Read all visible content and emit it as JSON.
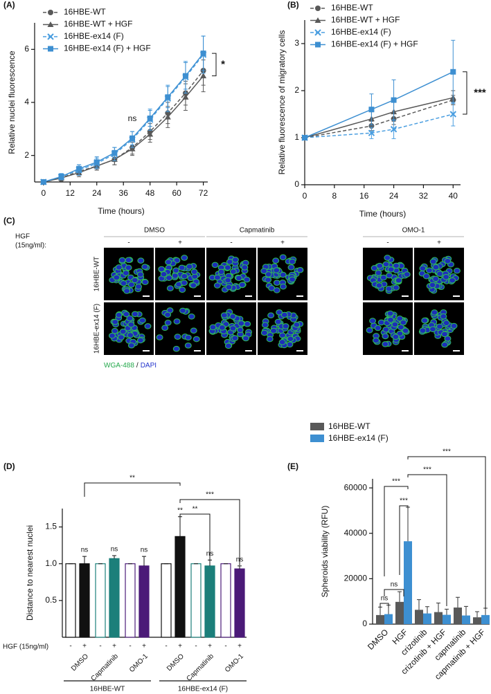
{
  "chart_data": [
    {
      "type": "line",
      "panel": "(A)",
      "x_label": "Time (hours)",
      "y_label": "Relative nuclei fluorescence",
      "x": [
        0,
        8,
        16,
        24,
        32,
        40,
        48,
        56,
        64,
        72
      ],
      "xlim": [
        -4,
        74
      ],
      "xticks": [
        0,
        12,
        24,
        36,
        48,
        60,
        72
      ],
      "ylim": [
        1,
        7
      ],
      "yticks": [
        2,
        4,
        6
      ],
      "series": [
        {
          "name": "16HBE-WT",
          "color": "#595959",
          "dash": true,
          "marker": "circle",
          "values": [
            1,
            1.15,
            1.4,
            1.6,
            1.85,
            2.3,
            2.9,
            3.6,
            4.35,
            5.2
          ],
          "errors": [
            0,
            0.12,
            0.15,
            0.15,
            0.2,
            0.25,
            0.3,
            0.4,
            0.45,
            0.55
          ]
        },
        {
          "name": "16HBE-WT + HGF",
          "color": "#595959",
          "dash": false,
          "marker": "triangle",
          "values": [
            1,
            1.15,
            1.35,
            1.6,
            1.85,
            2.25,
            2.8,
            3.45,
            4.2,
            5.0
          ],
          "errors": [
            0,
            0.1,
            0.15,
            0.15,
            0.2,
            0.25,
            0.3,
            0.4,
            0.5,
            0.6
          ]
        },
        {
          "name": "16HBE-ex14 (F)",
          "color": "#4a9ee0",
          "dash": true,
          "marker": "cross",
          "values": [
            1,
            1.2,
            1.45,
            1.7,
            2.05,
            2.6,
            3.35,
            4.15,
            4.95,
            5.8
          ],
          "errors": [
            0,
            0.12,
            0.2,
            0.2,
            0.25,
            0.3,
            0.4,
            0.5,
            0.6,
            0.7
          ]
        },
        {
          "name": "16HBE-ex14 (F) + HGF",
          "color": "#3d8fd1",
          "dash": false,
          "marker": "square",
          "values": [
            1,
            1.2,
            1.5,
            1.75,
            2.1,
            2.65,
            3.4,
            4.2,
            5.0,
            5.85
          ],
          "errors": [
            0,
            0.1,
            0.15,
            0.2,
            0.2,
            0.25,
            0.3,
            0.4,
            0.5,
            0.65
          ]
        }
      ],
      "annotations": [
        "ns",
        "*"
      ]
    },
    {
      "type": "line",
      "panel": "(B)",
      "x_label": "Time (hours)",
      "y_label": "Relative fluorescence of migratory cells",
      "x": [
        0,
        18,
        24,
        40
      ],
      "xlim": [
        0,
        42
      ],
      "xticks": [
        0,
        8,
        16,
        24,
        32,
        40
      ],
      "ylim": [
        0,
        3.5
      ],
      "yticks": [
        0,
        1,
        2,
        3
      ],
      "series": [
        {
          "name": "16HBE-WT",
          "color": "#595959",
          "dash": true,
          "marker": "circle",
          "values": [
            1,
            1.25,
            1.4,
            1.8
          ],
          "errors": [
            0,
            0.1,
            0.12,
            0.1
          ]
        },
        {
          "name": "16HBE-WT + HGF",
          "color": "#595959",
          "dash": false,
          "marker": "triangle",
          "values": [
            1,
            1.4,
            1.55,
            1.85
          ],
          "errors": [
            0,
            0.15,
            0.2,
            0.15
          ]
        },
        {
          "name": "16HBE-ex14 (F)",
          "color": "#4a9ee0",
          "dash": true,
          "marker": "cross",
          "values": [
            1,
            1.1,
            1.18,
            1.5
          ],
          "errors": [
            0,
            0.12,
            0.2,
            0.25
          ]
        },
        {
          "name": "16HBE-ex14 (F) + HGF",
          "color": "#3d8fd1",
          "dash": false,
          "marker": "square",
          "values": [
            1,
            1.6,
            1.8,
            2.4
          ],
          "errors": [
            0,
            0.33,
            0.43,
            0.67
          ]
        }
      ],
      "annotations": [
        "***"
      ]
    },
    {
      "type": "grouped-bar",
      "panel": "(D)",
      "y_label": "Distance to nearest nuclei",
      "ylim": [
        0,
        1.75
      ],
      "yticks": [
        0.5,
        {
          "value": 1,
          "label": "1.0"
        },
        1.5
      ],
      "hgf_label": "HGF (15ng/ml)",
      "hgf_levels": [
        "-",
        "+"
      ],
      "treatments": [
        "DMSO",
        "Capmatinib",
        "OMO-1"
      ],
      "colors": [
        "#111111",
        "#1b7f7a",
        "#4b1a78"
      ],
      "groups": [
        {
          "name": "16HBE-WT",
          "values": [
            1,
            1.0,
            1,
            1.07,
            1,
            0.97
          ],
          "errors": [
            0,
            0.1,
            0,
            0.04,
            0,
            0.13
          ],
          "significance": [
            "ns",
            "ns",
            "ns"
          ]
        },
        {
          "name": "16HBE-ex14 (F)",
          "values": [
            1,
            1.37,
            1,
            0.97,
            1,
            0.93
          ],
          "errors": [
            0,
            0.27,
            0,
            0.08,
            0,
            0.04
          ],
          "significance": [
            "**",
            "ns",
            "ns"
          ]
        }
      ],
      "comparisons": [
        "**",
        "***",
        "**"
      ]
    },
    {
      "type": "bar",
      "panel": "(E)",
      "y_label": "Spheroids viability (RFU)",
      "categories": [
        "DMSO",
        "HGF",
        "crizotinib",
        "crizotinib + HGF",
        "capmatinib",
        "capmatinib + HGF"
      ],
      "ylim": [
        0,
        64000
      ],
      "yticks": [
        0,
        20000,
        40000,
        60000
      ],
      "series": [
        {
          "name": "16HBE-WT",
          "color": "#595959",
          "values": [
            4000,
            9800,
            6300,
            5300,
            7300,
            3000
          ],
          "errors": [
            3500,
            4500,
            4500,
            4000,
            4500,
            2500
          ]
        },
        {
          "name": "16HBE-ex14 (F)",
          "color": "#3d8fd1",
          "values": [
            4400,
            36500,
            4700,
            4100,
            3800,
            4000
          ],
          "errors": [
            4000,
            15000,
            3000,
            2500,
            4000,
            3000
          ]
        }
      ],
      "comparisons": [
        "ns",
        "ns",
        "***",
        "***",
        "***",
        "***"
      ]
    }
  ],
  "panel_c": {
    "panel": "(C)",
    "treatment_label": [
      "HGF",
      "(15ng/ml):"
    ],
    "drugs": [
      "DMSO",
      "Capmatinib",
      "OMO-1"
    ],
    "hgf_levels": [
      "-",
      "+"
    ],
    "rows": [
      "16HBE-WT",
      "16HBE-ex14 (F)"
    ],
    "stain": [
      {
        "text": "WGA-488",
        "color": "#22a84a"
      },
      {
        "text": "DAPI",
        "color": "#2233cc"
      }
    ],
    "stain_separator": "/"
  }
}
